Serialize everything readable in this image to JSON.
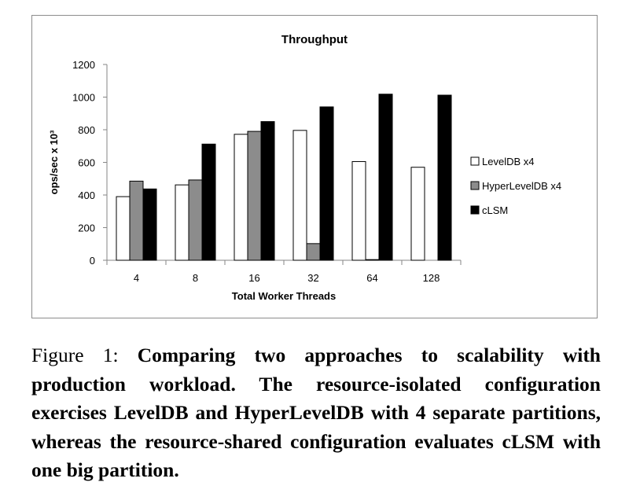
{
  "chart_data": {
    "type": "bar",
    "title": "Throughput",
    "xlabel": "Total Worker Threads",
    "ylabel": "ops/sec x 10³",
    "categories": [
      "4",
      "8",
      "16",
      "32",
      "64",
      "128"
    ],
    "series": [
      {
        "name": "LevelDB x4",
        "color": "#ffffff",
        "values": [
          390,
          462,
          772,
          796,
          605,
          570
        ]
      },
      {
        "name": "HyperLevelDB x4",
        "color": "#8c8c8c",
        "values": [
          485,
          492,
          790,
          102,
          4,
          null
        ]
      },
      {
        "name": "cLSM",
        "color": "#000000",
        "values": [
          437,
          712,
          850,
          940,
          1018,
          1012
        ]
      }
    ],
    "ylim": [
      0,
      1200
    ],
    "yticks": [
      0,
      200,
      400,
      600,
      800,
      1000,
      1200
    ],
    "grid": false,
    "legend": "right"
  },
  "caption": {
    "label": "Figure 1: ",
    "text": "Comparing two approaches to scalability with production workload. The resource-isolated configuration exercises LevelDB and HyperLevelDB with 4 separate partitions, whereas the resource-shared configuration evaluates cLSM with one big partition."
  }
}
